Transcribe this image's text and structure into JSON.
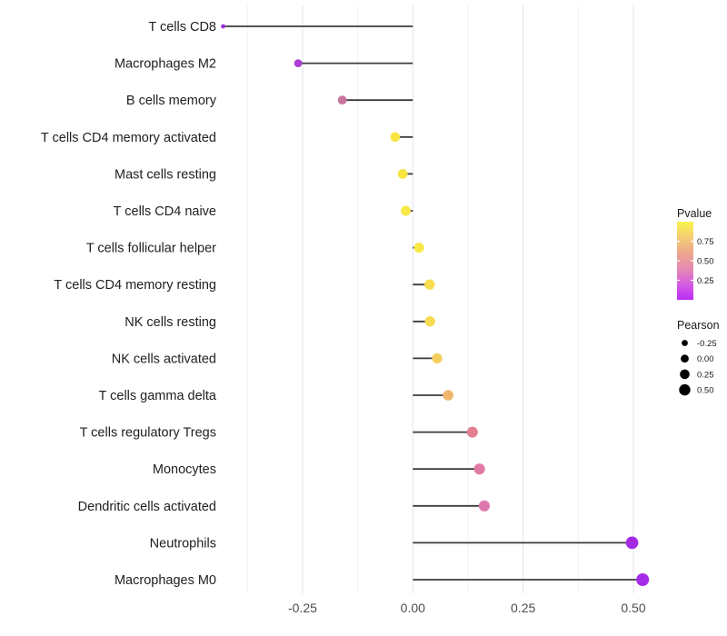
{
  "chart_data": {
    "type": "lollipop",
    "title": "",
    "xlabel": "",
    "ylabel": "",
    "x_ticks": [
      {
        "label": "-0.25",
        "value": -0.25
      },
      {
        "label": "0.00",
        "value": 0.0
      },
      {
        "label": "0.25",
        "value": 0.25
      },
      {
        "label": "0.50",
        "value": 0.5
      }
    ],
    "x_minor_gridlines": [
      -0.375,
      -0.125,
      0.125,
      0.375
    ],
    "xlim": [
      -0.4775,
      0.5675
    ],
    "grid": "vertical major+minor, theme_minimal",
    "legend_position": "right",
    "points": [
      {
        "label": "T cells CD8",
        "pearson": -0.43,
        "pvalue": 0.05,
        "color": "#9C32DC",
        "radius": 2.4
      },
      {
        "label": "Macrophages M2",
        "pearson": -0.26,
        "pvalue": 0.15,
        "color": "#AC3ED4",
        "radius": 4.4
      },
      {
        "label": "B cells memory",
        "pearson": -0.16,
        "pvalue": 0.33,
        "color": "#C9749C",
        "radius": 4.9
      },
      {
        "label": "T cells CD4 memory activated",
        "pearson": -0.04,
        "pvalue": 0.85,
        "color": "#F8E341",
        "radius": 5.3
      },
      {
        "label": "Mast cells resting",
        "pearson": -0.023,
        "pvalue": 0.87,
        "color": "#F9E542",
        "radius": 5.4
      },
      {
        "label": "T cells CD4 naive",
        "pearson": -0.016,
        "pvalue": 0.9,
        "color": "#F9E748",
        "radius": 5.45
      },
      {
        "label": "T cells follicular helper",
        "pearson": 0.014,
        "pvalue": 0.9,
        "color": "#F9E845",
        "radius": 5.55
      },
      {
        "label": "T cells CD4 memory resting",
        "pearson": 0.038,
        "pvalue": 0.8,
        "color": "#F8DC50",
        "radius": 5.65
      },
      {
        "label": "NK cells resting",
        "pearson": 0.039,
        "pvalue": 0.8,
        "color": "#F8DB52",
        "radius": 5.65
      },
      {
        "label": "NK cells activated",
        "pearson": 0.055,
        "pvalue": 0.72,
        "color": "#F4CE5F",
        "radius": 5.7
      },
      {
        "label": "T cells gamma delta",
        "pearson": 0.08,
        "pvalue": 0.58,
        "color": "#EFB76D",
        "radius": 5.8
      },
      {
        "label": "T cells regulatory  Tregs",
        "pearson": 0.135,
        "pvalue": 0.45,
        "color": "#E28091",
        "radius": 6.0
      },
      {
        "label": "Monocytes",
        "pearson": 0.151,
        "pvalue": 0.42,
        "color": "#E27BA4",
        "radius": 6.05
      },
      {
        "label": "Dendritic cells activated",
        "pearson": 0.162,
        "pvalue": 0.4,
        "color": "#DF78AF",
        "radius": 6.1
      },
      {
        "label": "Neutrophils",
        "pearson": 0.497,
        "pvalue": 0.07,
        "color": "#A52BE3",
        "radius": 6.85
      },
      {
        "label": "Macrophages M0",
        "pearson": 0.521,
        "pvalue": 0.06,
        "color": "#A62BEB",
        "radius": 7.0
      }
    ],
    "legend_pvalue": {
      "title": "Pvalue",
      "range": [
        0,
        1
      ],
      "ticks": [
        {
          "label": "0.75",
          "value": 0.75
        },
        {
          "label": "0.50",
          "value": 0.5
        },
        {
          "label": "0.25",
          "value": 0.25
        }
      ],
      "gradient_top_to_bottom": [
        "#F9F44C",
        "#F4CE74",
        "#EDA68D",
        "#E58BB2",
        "#D55EE0",
        "#BA2BF6"
      ]
    },
    "legend_pearson": {
      "title": "Pearson",
      "dot_color": "#000000",
      "items": [
        {
          "label": "-0.25",
          "value": -0.25,
          "radius": 3.4
        },
        {
          "label": "0.00",
          "value": 0.0,
          "radius": 4.4
        },
        {
          "label": "0.25",
          "value": 0.25,
          "radius": 5.3
        },
        {
          "label": "0.50",
          "value": 0.5,
          "radius": 6.2
        }
      ]
    },
    "colors": {
      "background": "#FFFFFF",
      "stem": "#3B3B3B",
      "grid_major": "#E4E4E4",
      "grid_minor": "#F2F2F2",
      "axis_tick_text": "#4D4D4D",
      "category_text": "#212121",
      "legend_text": "#1A1A1A"
    }
  }
}
